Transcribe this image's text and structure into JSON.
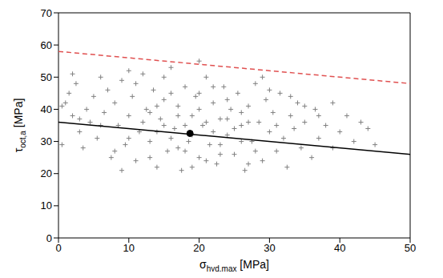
{
  "chart_data": {
    "type": "scatter",
    "x_label": {
      "symbol": "σ",
      "subscript": "hyd,max",
      "unit": "[MPa]"
    },
    "y_label": {
      "symbol": "τ",
      "subscript": "oct,a",
      "unit": "[MPa]"
    },
    "xlim": [
      0,
      50
    ],
    "xticks": [
      0,
      10,
      20,
      30,
      40,
      50
    ],
    "ylim": [
      0,
      70
    ],
    "yticks": [
      0,
      10,
      20,
      30,
      40,
      50,
      60,
      70
    ],
    "grid": false,
    "series": [
      {
        "type": "scatter",
        "marker": "plus",
        "color": "#808080",
        "x": [
          1,
          2,
          1.5,
          3,
          2.5,
          4,
          3.5,
          5,
          4.5,
          6,
          5.5,
          6.5,
          7,
          7.5,
          8,
          8.5,
          9,
          9.5,
          10,
          10.5,
          11,
          11.5,
          12,
          12.5,
          13,
          13.5,
          14,
          14.5,
          15,
          15.5,
          16,
          16.5,
          17,
          17.5,
          18,
          18.5,
          19,
          19.5,
          20,
          20.5,
          21,
          21.5,
          22,
          22.5,
          23,
          23.5,
          24,
          24.5,
          25,
          25.5,
          26,
          26.5,
          27,
          27.5,
          28,
          28.5,
          29,
          29.5,
          30,
          30.5,
          31,
          31.5,
          32,
          32.5,
          33,
          33.5,
          34,
          34.5,
          35,
          36,
          36.5,
          37,
          38,
          39,
          40,
          41,
          42,
          44,
          45,
          12,
          13,
          14,
          15,
          16,
          17,
          18,
          19,
          20,
          21,
          22,
          23,
          24,
          25,
          26,
          27,
          18,
          20,
          22,
          16,
          14,
          24,
          10,
          8,
          6,
          3,
          0.5,
          0.5,
          11,
          15,
          17,
          21,
          26,
          28,
          30,
          33,
          35,
          9,
          13,
          19,
          23,
          27,
          31,
          37,
          39,
          43,
          2,
          10,
          20,
          29
        ],
        "y": [
          42,
          38,
          45,
          33,
          48,
          40,
          28,
          44,
          36,
          50,
          31,
          39,
          46,
          25,
          42,
          35,
          49,
          29,
          38,
          44,
          24,
          33,
          51,
          40,
          30,
          46,
          22,
          37,
          43,
          27,
          53,
          34,
          41,
          21,
          47,
          30,
          38,
          44,
          25,
          35,
          50,
          29,
          42,
          23,
          37,
          47,
          32,
          40,
          26,
          45,
          35,
          21,
          41,
          30,
          48,
          36,
          24,
          43,
          33,
          39,
          27,
          45,
          31,
          22,
          38,
          34,
          42,
          28,
          36,
          25,
          40,
          31,
          35,
          28,
          33,
          38,
          30,
          34,
          29,
          36,
          39,
          33,
          35,
          31,
          38,
          35,
          32,
          40,
          36,
          33,
          29,
          37,
          34,
          39,
          36,
          27,
          45,
          47,
          45,
          41,
          43,
          31,
          27,
          35,
          37,
          41,
          29,
          48,
          50,
          28,
          24,
          30,
          27,
          46,
          44,
          41,
          21,
          25,
          22,
          26,
          23,
          35,
          38,
          42,
          36,
          51,
          52,
          55,
          50
        ]
      },
      {
        "type": "line",
        "marker": "none",
        "line_style": "solid",
        "color": "#000000",
        "x": [
          0,
          50
        ],
        "y": [
          36,
          26
        ]
      },
      {
        "type": "line",
        "marker": "none",
        "line_style": "dashed",
        "color": "#e05050",
        "x": [
          0,
          50
        ],
        "y": [
          58,
          48
        ]
      },
      {
        "type": "scatter",
        "marker": "circle",
        "color": "#000000",
        "x": [
          18.7
        ],
        "y": [
          32.5
        ]
      }
    ]
  }
}
